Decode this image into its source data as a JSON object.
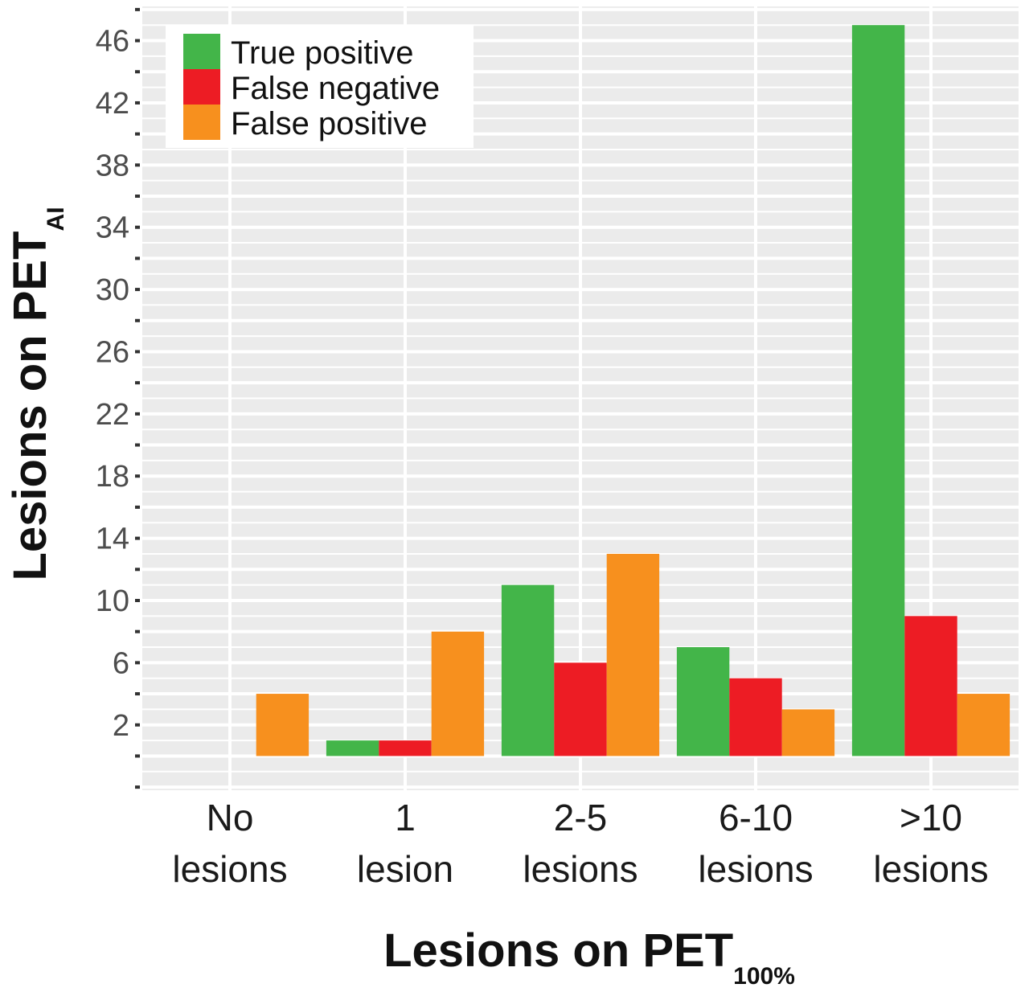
{
  "chart_data": {
    "type": "bar",
    "categories": [
      [
        "No",
        "lesions"
      ],
      [
        "1",
        "lesion"
      ],
      [
        "2-5",
        "lesions"
      ],
      [
        "6-10",
        "lesions"
      ],
      [
        ">10",
        "lesions"
      ]
    ],
    "series": [
      {
        "name": "True positive",
        "color": "#43b549",
        "values": [
          0,
          1,
          11,
          7,
          47
        ]
      },
      {
        "name": "False negative",
        "color": "#ed1c24",
        "values": [
          0,
          1,
          6,
          5,
          9
        ]
      },
      {
        "name": "False positive",
        "color": "#f7901e",
        "values": [
          4,
          8,
          13,
          3,
          4
        ]
      }
    ],
    "xlabel": {
      "main": "Lesions on PET",
      "sub": "100%"
    },
    "ylabel": {
      "main": "Lesions on PET",
      "sub": "AI"
    },
    "yticks": [
      2,
      6,
      10,
      14,
      18,
      22,
      26,
      30,
      34,
      38,
      42,
      46
    ],
    "ylim": [
      -2.2,
      48.2
    ],
    "legend_position": "top-left",
    "grid": true
  }
}
